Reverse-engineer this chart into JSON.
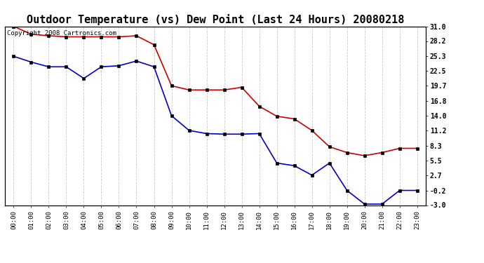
{
  "title": "Outdoor Temperature (vs) Dew Point (Last 24 Hours) 20080218",
  "copyright": "Copyright 2008 Cartronics.com",
  "x_labels": [
    "00:00",
    "01:00",
    "02:00",
    "03:00",
    "04:00",
    "05:00",
    "06:00",
    "07:00",
    "08:00",
    "09:00",
    "10:00",
    "11:00",
    "12:00",
    "13:00",
    "14:00",
    "15:00",
    "16:00",
    "17:00",
    "18:00",
    "19:00",
    "20:00",
    "21:00",
    "22:00",
    "23:00"
  ],
  "temp_data": [
    31.0,
    29.5,
    29.2,
    29.0,
    29.0,
    29.0,
    29.0,
    29.2,
    27.5,
    19.7,
    18.9,
    18.9,
    18.9,
    19.4,
    15.8,
    13.9,
    13.4,
    11.2,
    8.1,
    7.0,
    6.4,
    7.0,
    7.8,
    7.8
  ],
  "dew_data": [
    25.3,
    24.2,
    23.3,
    23.3,
    21.1,
    23.3,
    23.5,
    24.4,
    23.3,
    14.0,
    11.2,
    10.6,
    10.5,
    10.5,
    10.6,
    5.0,
    4.5,
    2.7,
    5.0,
    -0.2,
    -2.8,
    -2.8,
    -0.2,
    -0.2
  ],
  "temp_color": "#cc0000",
  "dew_color": "#0000cc",
  "bg_color": "#ffffff",
  "grid_color": "#c8c8c8",
  "ylim": [
    -3.0,
    31.0
  ],
  "yticks_right": [
    31.0,
    28.2,
    25.3,
    22.5,
    19.7,
    16.8,
    14.0,
    11.2,
    8.3,
    5.5,
    2.7,
    -0.2,
    -3.0
  ],
  "title_fontsize": 11,
  "copyright_fontsize": 6.5,
  "figwidth": 6.9,
  "figheight": 3.75,
  "dpi": 100
}
